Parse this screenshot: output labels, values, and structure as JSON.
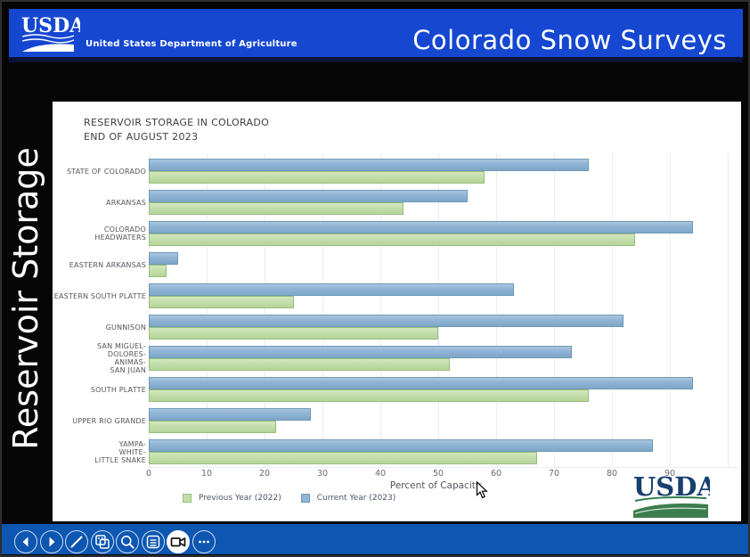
{
  "header": {
    "logo_text": "USDA",
    "dept_label": "United States Department of Agriculture",
    "page_title": "Colorado Snow Surveys",
    "bar_color": "#1547d1"
  },
  "sidebar": {
    "vertical_label": "Reservoir Storage"
  },
  "chart_data": {
    "type": "bar",
    "orientation": "horizontal",
    "title_line1": "RESERVOIR STORAGE IN COLORADO",
    "title_line2": "END OF AUGUST 2023",
    "xlabel": "Percent of Capacity",
    "xlim": [
      0,
      100
    ],
    "xticks": [
      0,
      10,
      20,
      30,
      40,
      50,
      60,
      70,
      80,
      90
    ],
    "grid": true,
    "legend_position": "bottom-left",
    "categories": [
      [
        "STATE OF COLORADO"
      ],
      [
        "ARKANSAS"
      ],
      [
        "COLORADO HEADWATERS"
      ],
      [
        "EASTERN ARKANSAS"
      ],
      [
        "EASTERN SOUTH PLATTE"
      ],
      [
        "GUNNISON"
      ],
      [
        "SAN MIGUEL-",
        "DOLORES-",
        "ANIMAS-",
        "SAN JUAN"
      ],
      [
        "SOUTH PLATTE"
      ],
      [
        "UPPER RIO GRANDE"
      ],
      [
        "YAMPA-",
        "WHITE-",
        "LITTLE SNAKE"
      ]
    ],
    "series": [
      {
        "name": "Current Year (2023)",
        "color": "#92b5d5",
        "border": "#6e99b8",
        "values": [
          76,
          55,
          94,
          5,
          63,
          82,
          73,
          94,
          28,
          87
        ]
      },
      {
        "name": "Previous Year (2022)",
        "color": "#c3deab",
        "border": "#96bf7b",
        "values": [
          58,
          44,
          84,
          3,
          25,
          50,
          52,
          76,
          22,
          67
        ]
      }
    ],
    "legend": [
      {
        "label": "Previous Year (2022)",
        "color": "#c3deab",
        "border": "#96bf7b"
      },
      {
        "label": "Current Year (2023)",
        "color": "#92b5d5",
        "border": "#6e99b8"
      }
    ]
  },
  "slide_logo": {
    "text": "USDA"
  },
  "toolbar": {
    "background": "#0d56b2",
    "buttons": [
      {
        "icon": "previous-icon",
        "active": false
      },
      {
        "icon": "next-icon",
        "active": false
      },
      {
        "icon": "pen-icon",
        "active": false
      },
      {
        "icon": "slides-icon",
        "active": false
      },
      {
        "icon": "zoom-icon",
        "active": false
      },
      {
        "icon": "notes-icon",
        "active": false
      },
      {
        "icon": "camera-icon",
        "active": true
      },
      {
        "icon": "more-icon",
        "active": false
      }
    ]
  }
}
